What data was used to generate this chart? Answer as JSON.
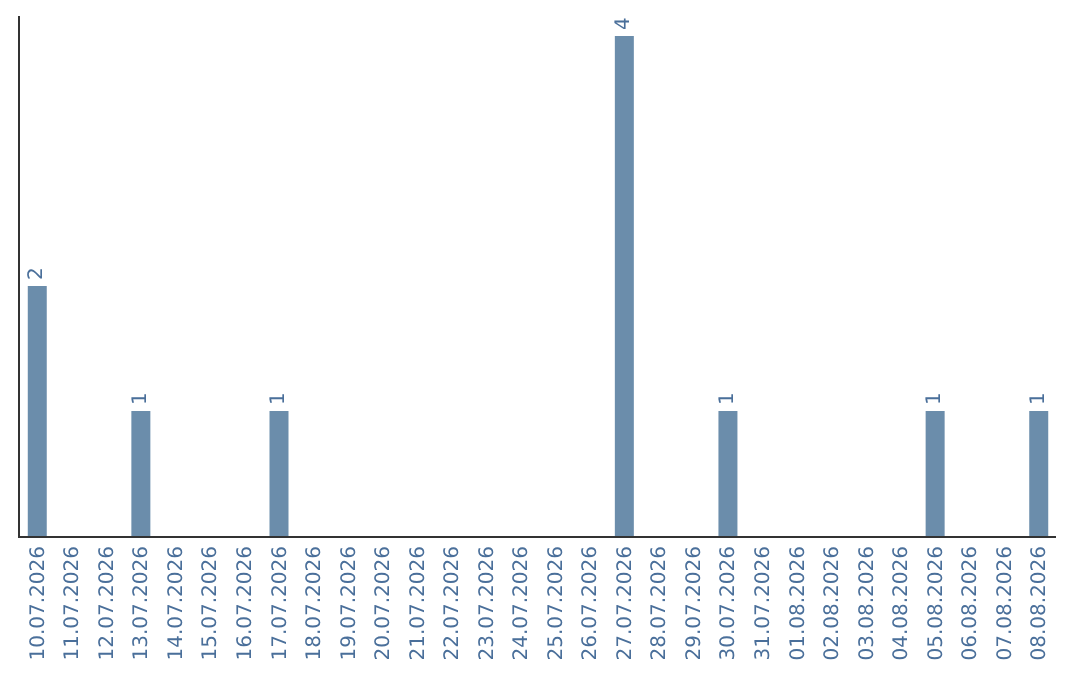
{
  "chart_data": {
    "type": "bar",
    "categories": [
      "10.07.2026",
      "11.07.2026",
      "12.07.2026",
      "13.07.2026",
      "14.07.2026",
      "15.07.2026",
      "16.07.2026",
      "17.07.2026",
      "18.07.2026",
      "19.07.2026",
      "20.07.2026",
      "21.07.2026",
      "22.07.2026",
      "23.07.2026",
      "24.07.2026",
      "25.07.2026",
      "26.07.2026",
      "27.07.2026",
      "28.07.2026",
      "29.07.2026",
      "30.07.2026",
      "31.07.2026",
      "01.08.2026",
      "02.08.2026",
      "03.08.2026",
      "04.08.2026",
      "05.08.2026",
      "06.08.2026",
      "07.08.2026",
      "08.08.2026"
    ],
    "values": [
      2,
      0,
      0,
      1,
      0,
      0,
      0,
      1,
      0,
      0,
      0,
      0,
      0,
      0,
      0,
      0,
      0,
      4,
      0,
      0,
      1,
      0,
      0,
      0,
      0,
      0,
      1,
      0,
      0,
      1
    ],
    "value_labels": [
      "2",
      null,
      null,
      "1",
      null,
      null,
      null,
      "1",
      null,
      null,
      null,
      null,
      null,
      null,
      null,
      null,
      null,
      "4",
      null,
      null,
      "1",
      null,
      null,
      null,
      null,
      null,
      "1",
      null,
      null,
      "1"
    ],
    "color": "#6b8dab",
    "tick_labels": "x"
  }
}
